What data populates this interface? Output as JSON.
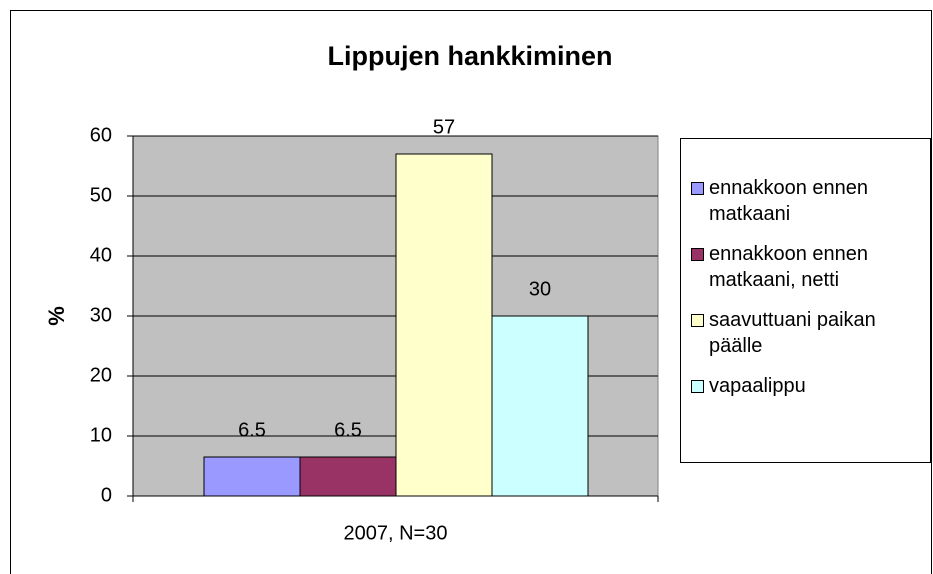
{
  "chart_data": {
    "type": "bar",
    "title": "Lippujen hankkiminen",
    "categories": [
      "2007, N=30"
    ],
    "y_label": "%",
    "series": [
      {
        "name": "ennakkoon ennen matkaani",
        "color": "#9999ff",
        "values": [
          6.5
        ]
      },
      {
        "name": "ennakkoon ennen matkaani, netti",
        "color": "#993366",
        "values": [
          6.5
        ]
      },
      {
        "name": "saavuttuani paikan päälle",
        "color": "#ffffcc",
        "values": [
          57
        ]
      },
      {
        "name": "vapaalippu",
        "color": "#ccffff",
        "values": [
          30
        ]
      }
    ],
    "ylim": [
      0,
      60
    ],
    "yticks": [
      0,
      10,
      20,
      30,
      40,
      50,
      60
    ],
    "grid": true,
    "legend": "right",
    "plot_background": "#c0c0c0"
  }
}
